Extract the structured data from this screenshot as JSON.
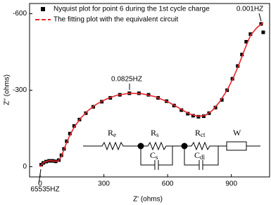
{
  "chart_data": {
    "type": "scatter",
    "x_label": "Z' (ohms)",
    "y_label": "Z'' (ohms)",
    "xlim": [
      -50,
      1080
    ],
    "ylim": [
      40,
      -640
    ],
    "xticks": [
      0,
      300,
      600,
      900
    ],
    "yticks": [
      0,
      -300,
      -600
    ],
    "legend": "upper left",
    "series": [
      {
        "name": "Nyquist plot for point 6 during the 1st cycle charge",
        "type": "scatter",
        "color": "#000000",
        "x": [
          5,
          15,
          28,
          42,
          58,
          73,
          88,
          100,
          112,
          125,
          140,
          160,
          185,
          215,
          250,
          290,
          330,
          375,
          420,
          465,
          510,
          555,
          595,
          630,
          665,
          695,
          720,
          745,
          770,
          795,
          825,
          855,
          880,
          905,
          930,
          950,
          970,
          990,
          1040,
          1050
        ],
        "values": [
          -8,
          -15,
          -20,
          -23,
          -23,
          -21,
          -26,
          -45,
          -70,
          -100,
          -130,
          -160,
          -185,
          -210,
          -235,
          -255,
          -270,
          -282,
          -288,
          -288,
          -282,
          -270,
          -257,
          -240,
          -222,
          -208,
          -200,
          -196,
          -198,
          -210,
          -232,
          -262,
          -300,
          -345,
          -395,
          -440,
          -490,
          -520,
          -560,
          -527
        ]
      },
      {
        "name": "The fitting plot with the equivalent circuit",
        "type": "line",
        "color": "#e8252a",
        "x": [
          0,
          10,
          25,
          45,
          65,
          85,
          100,
          115,
          135,
          160,
          190,
          225,
          265,
          310,
          360,
          420,
          480,
          540,
          600,
          650,
          700,
          740,
          775,
          810,
          845,
          880,
          910,
          940,
          965,
          990,
          1020,
          1050
        ],
        "values": [
          0,
          -12,
          -20,
          -24,
          -22,
          -22,
          -40,
          -75,
          -115,
          -155,
          -190,
          -220,
          -245,
          -265,
          -280,
          -288,
          -286,
          -275,
          -255,
          -232,
          -208,
          -198,
          -200,
          -220,
          -255,
          -300,
          -350,
          -410,
          -465,
          -515,
          -545,
          -565
        ]
      }
    ],
    "annotations": [
      "0.0825HZ",
      "0.001HZ",
      "65535HZ"
    ],
    "circuit": [
      {
        "symbol": "R",
        "subscript": "e"
      },
      {
        "symbol": "R",
        "subscript": "s"
      },
      {
        "symbol": "C",
        "subscript": "s"
      },
      {
        "symbol": "R",
        "subscript": "ct"
      },
      {
        "symbol": "C",
        "subscript": "dl"
      },
      {
        "symbol": "W"
      }
    ]
  }
}
